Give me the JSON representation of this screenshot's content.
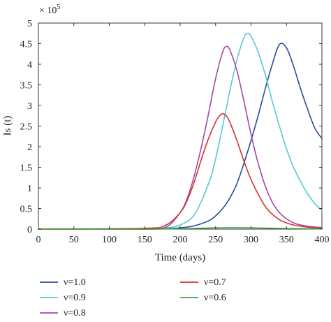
{
  "chart_data": {
    "type": "line",
    "xlabel": "Time (days)",
    "ylabel": "Is (t)",
    "y_multiplier": "× 10",
    "y_multiplier_exponent": "5",
    "xlim": [
      0,
      400
    ],
    "ylim": [
      0,
      5
    ],
    "x_ticks": [
      "0",
      "50",
      "100",
      "150",
      "200",
      "250",
      "300",
      "350",
      "400"
    ],
    "y_ticks": [
      "0",
      "0.5",
      "1",
      "1.5",
      "2",
      "2.5",
      "3",
      "3.5",
      "4",
      "4.5",
      "5"
    ],
    "grid": false,
    "legend_placement": "bottom",
    "series": [
      {
        "name": "ν=1.0",
        "color": "#2a4b9b",
        "x": [
          0,
          150,
          180,
          200,
          220,
          240,
          250,
          260,
          270,
          280,
          290,
          300,
          310,
          320,
          330,
          340,
          350,
          360,
          370,
          380,
          390,
          400
        ],
        "y": [
          0,
          0,
          0.01,
          0.03,
          0.08,
          0.2,
          0.32,
          0.5,
          0.75,
          1.1,
          1.6,
          2.15,
          2.75,
          3.4,
          4.0,
          4.48,
          4.4,
          3.95,
          3.4,
          2.9,
          2.45,
          2.2
        ]
      },
      {
        "name": "ν=0.9",
        "color": "#56c8d8",
        "x": [
          0,
          150,
          180,
          200,
          220,
          240,
          250,
          260,
          270,
          280,
          290,
          295,
          300,
          310,
          320,
          330,
          340,
          350,
          360,
          370,
          380,
          390,
          400
        ],
        "y": [
          0,
          0,
          0.03,
          0.1,
          0.35,
          1.1,
          1.7,
          2.5,
          3.35,
          4.1,
          4.65,
          4.75,
          4.68,
          4.3,
          3.75,
          3.1,
          2.5,
          1.95,
          1.5,
          1.15,
          0.85,
          0.62,
          0.45
        ]
      },
      {
        "name": "ν=0.8",
        "color": "#a447a6",
        "x": [
          0,
          150,
          180,
          200,
          210,
          220,
          230,
          240,
          250,
          260,
          265,
          270,
          280,
          290,
          300,
          310,
          320,
          330,
          340,
          350,
          360,
          370,
          380,
          390,
          400
        ],
        "y": [
          0,
          0,
          0.05,
          0.4,
          0.75,
          1.3,
          2.0,
          2.8,
          3.65,
          4.3,
          4.43,
          4.35,
          3.85,
          3.1,
          2.3,
          1.6,
          1.05,
          0.65,
          0.4,
          0.25,
          0.15,
          0.1,
          0.07,
          0.05,
          0.04
        ]
      },
      {
        "name": "ν=0.7",
        "color": "#d7312f",
        "x": [
          0,
          150,
          180,
          200,
          210,
          220,
          230,
          240,
          250,
          255,
          260,
          265,
          270,
          280,
          290,
          300,
          310,
          320,
          330,
          340,
          350,
          360,
          370,
          380,
          390,
          400
        ],
        "y": [
          0,
          0.02,
          0.1,
          0.4,
          0.7,
          1.15,
          1.7,
          2.2,
          2.6,
          2.74,
          2.8,
          2.75,
          2.6,
          2.15,
          1.65,
          1.2,
          0.85,
          0.55,
          0.36,
          0.23,
          0.15,
          0.1,
          0.07,
          0.05,
          0.03,
          0.02
        ]
      },
      {
        "name": "ν=0.6",
        "color": "#3aa53a",
        "x": [
          0,
          150,
          200,
          250,
          270,
          300,
          350,
          400
        ],
        "y": [
          0,
          0,
          0.01,
          0.03,
          0.035,
          0.03,
          0.015,
          0.005
        ]
      }
    ]
  }
}
